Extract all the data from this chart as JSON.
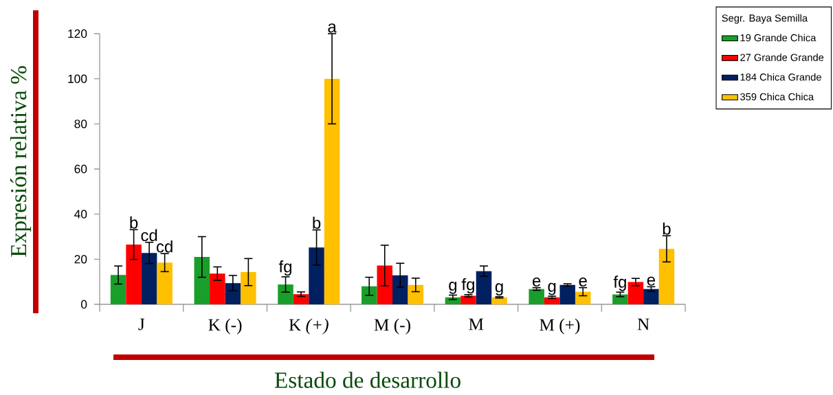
{
  "chart_data": {
    "type": "bar",
    "xlabel": "Estado de desarrollo",
    "ylabel": "Expresión relativa %",
    "categories": [
      "J",
      "K (-)",
      "K *(+)*",
      "M (-)",
      "M",
      "M  (+)",
      "N"
    ],
    "ylim": [
      0,
      120
    ],
    "yticks": [
      0,
      20,
      40,
      60,
      80,
      100,
      120
    ],
    "legend": "top right",
    "legend_title": "Segr.   Baya   Semilla",
    "series": [
      {
        "name": "19   Grande   Chica",
        "color": "#1a9e2a",
        "values": [
          13.0,
          21.0,
          8.8,
          8.0,
          3.1,
          6.8,
          4.4
        ],
        "errors": [
          4.0,
          9.0,
          3.4,
          4.0,
          1.0,
          0.6,
          1.0
        ],
        "value_labels": [
          null,
          null,
          "fg",
          null,
          "g",
          "e",
          "fg"
        ]
      },
      {
        "name": "27   Grande   Grande",
        "color": "#ff0000",
        "values": [
          26.5,
          13.6,
          4.5,
          17.2,
          3.8,
          3.1,
          9.9
        ],
        "errors": [
          6.6,
          3.0,
          1.0,
          9.0,
          0.5,
          0.5,
          1.6
        ],
        "value_labels": [
          "b",
          null,
          null,
          null,
          "fg",
          "g",
          null
        ]
      },
      {
        "name": "184   Chica   Grande",
        "color": "#002060",
        "values": [
          22.8,
          9.4,
          25.2,
          12.9,
          14.7,
          8.6,
          6.8
        ],
        "errors": [
          4.7,
          3.4,
          7.8,
          5.3,
          2.3,
          0.5,
          1.0
        ],
        "value_labels": [
          "cd",
          null,
          "b",
          null,
          null,
          null,
          "e"
        ]
      },
      {
        "name": "359   Chica   Chica",
        "color": "#ffc000",
        "values": [
          18.5,
          14.3,
          100,
          8.6,
          3.1,
          5.6,
          24.6
        ],
        "errors": [
          4.0,
          6.0,
          20.0,
          3.0,
          0.3,
          1.8,
          5.8
        ],
        "value_labels": [
          "cd",
          null,
          "a",
          null,
          "g",
          "e",
          "b"
        ]
      }
    ]
  }
}
